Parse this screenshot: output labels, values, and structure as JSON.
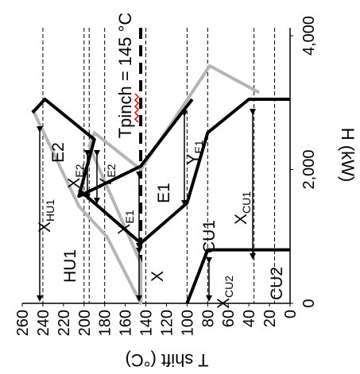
{
  "chart_data": {
    "type": "line",
    "orientation": "rotated",
    "xlabel": "T shift (°C)",
    "ylabel": "H (kW)",
    "x_ticks": [
      "260",
      "240",
      "220",
      "200",
      "180",
      "160",
      "140",
      "120",
      "100",
      "80",
      "60",
      "40",
      "20",
      "0"
    ],
    "y_ticks": [
      "0",
      "2,000",
      "4,000"
    ],
    "xlim": [
      0,
      260
    ],
    "ylim": [
      0,
      4000
    ],
    "pinch_label": "Tpinch = 145 °C",
    "pinch_value": 145,
    "grid": false,
    "dashed_reference_lines": [
      240,
      200,
      195,
      180,
      140,
      100,
      80,
      35,
      15
    ],
    "series": [
      {
        "color": "#b5b5b5",
        "points": [
          [
            250,
            2900
          ],
          [
            205,
            1450
          ],
          [
            178,
            1000
          ],
          [
            145,
            0
          ],
          [
            145,
            600
          ],
          [
            195,
            2350
          ],
          [
            190,
            2550
          ],
          [
            145,
            2000
          ],
          [
            78,
            3550
          ],
          [
            30,
            3150
          ]
        ]
      },
      {
        "color": "#000000",
        "points": [
          [
            250,
            2850
          ],
          [
            238,
            3050
          ],
          [
            190,
            2450
          ],
          [
            205,
            1600
          ],
          [
            145,
            2050
          ],
          [
            95,
            3050
          ]
        ]
      },
      {
        "color": "#000000",
        "points": [
          [
            205,
            1700
          ],
          [
            145,
            900
          ],
          [
            100,
            1500
          ],
          [
            80,
            2550
          ],
          [
            40,
            3050
          ],
          [
            0,
            3050
          ]
        ]
      },
      {
        "color": "#000000",
        "points": [
          [
            100,
            0
          ],
          [
            80,
            800
          ],
          [
            0,
            800
          ]
        ]
      }
    ],
    "arrows": [
      {
        "label": "X",
        "sub": "HU1",
        "kind": "v"
      },
      {
        "label": "X",
        "sub": "E2",
        "kind": "v"
      },
      {
        "label": "Y",
        "sub": "E2",
        "kind": "h"
      },
      {
        "label": "X",
        "sub": "E1",
        "kind": "v"
      },
      {
        "label": "Y",
        "sub": "E1",
        "kind": "h"
      },
      {
        "label": "X",
        "sub": "CU1",
        "kind": "v"
      },
      {
        "label": "X",
        "sub": "CU2",
        "kind": "v"
      },
      {
        "label": "X",
        "sub": "",
        "kind": "v"
      }
    ],
    "region_labels": [
      "HU1",
      "E2",
      "E1",
      "CU1",
      "CU2"
    ]
  }
}
